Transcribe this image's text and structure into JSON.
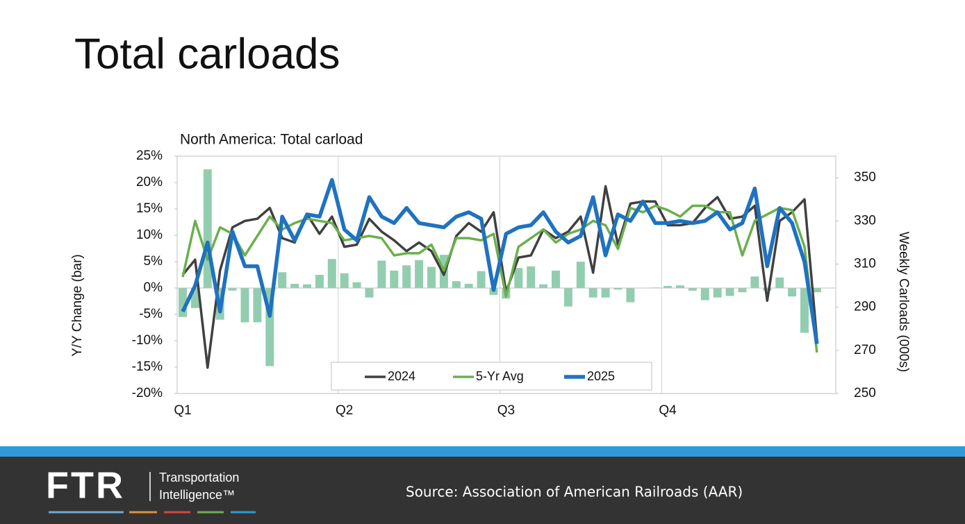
{
  "title": "Total carloads",
  "chart_data": {
    "type": "combo",
    "title": "North America: Total carload",
    "y_label": "Y/Y Change (bar)",
    "y2_label": "Weekly Carloads (000s)",
    "categories": [
      "Q1",
      null,
      null,
      null,
      null,
      null,
      null,
      null,
      null,
      null,
      null,
      null,
      null,
      "Q2",
      null,
      null,
      null,
      null,
      null,
      null,
      null,
      null,
      null,
      null,
      null,
      null,
      "Q3",
      null,
      null,
      null,
      null,
      null,
      null,
      null,
      null,
      null,
      null,
      null,
      null,
      "Q4",
      null,
      null,
      null,
      null,
      null,
      null,
      null,
      null,
      null,
      null,
      null,
      null
    ],
    "ylim": [
      -20,
      25
    ],
    "yticks": [
      {
        "value": -20,
        "label": "-20%"
      },
      {
        "value": -15,
        "label": "-15%"
      },
      {
        "value": -10,
        "label": "-10%"
      },
      {
        "value": -5,
        "label": "-5%"
      },
      {
        "value": 0,
        "label": "0%"
      },
      {
        "value": 5,
        "label": "5%"
      },
      {
        "value": 10,
        "label": "10%"
      },
      {
        "value": 15,
        "label": "15%"
      },
      {
        "value": 20,
        "label": "20%"
      },
      {
        "value": 25,
        "label": "25%"
      }
    ],
    "y2lim": [
      250,
      360
    ],
    "y2ticks": [
      250,
      270,
      290,
      310,
      330,
      350
    ],
    "legend": "bottom",
    "series": [
      {
        "type": "bar",
        "axis": "y",
        "color": "#93cdb0",
        "values": [
          -5.5,
          -3.8,
          22.5,
          -6,
          -0.5,
          -6.5,
          -6.5,
          -14.8,
          3,
          0.8,
          0.7,
          2.5,
          5.5,
          2.8,
          1.1,
          -1.8,
          5.2,
          3.3,
          4.3,
          5.3,
          4,
          6.3,
          1.3,
          0.8,
          3.2,
          -1.3,
          -2,
          3.8,
          4.1,
          0.7,
          3.3,
          -3.5,
          5,
          -1.8,
          -1.8,
          -0.3,
          -2.7,
          0,
          0.1,
          0.4,
          0.5,
          -0.5,
          -2.3,
          -1.8,
          -1.5,
          -0.8,
          2.2,
          -0.5,
          2,
          -1.6,
          -8.5,
          -0.8
        ]
      },
      {
        "type": "line",
        "axis": "y2",
        "name": "2024",
        "color": "#404040",
        "values": [
          305,
          312,
          262,
          307,
          327,
          330,
          331,
          336,
          322,
          320,
          333,
          324,
          332,
          318,
          319,
          331,
          325,
          321,
          316,
          320,
          316,
          305,
          323,
          329,
          325,
          334,
          297,
          313,
          314,
          326,
          322,
          325,
          332,
          306,
          346,
          319,
          338,
          339,
          339,
          328,
          328,
          329,
          336,
          341,
          331,
          332,
          337,
          293,
          330,
          334,
          340,
          275
        ]
      },
      {
        "type": "line",
        "axis": "y2",
        "name": "5-Yr Avg",
        "color": "#6ab04c",
        "values": [
          304,
          330,
          312,
          327,
          324,
          314,
          323,
          332,
          326,
          329,
          331,
          330,
          329,
          321,
          322,
          323,
          322,
          314,
          315,
          315,
          319,
          307,
          322,
          322,
          321,
          324,
          295,
          318,
          322,
          326,
          320,
          324,
          326,
          330,
          328,
          317,
          336,
          334,
          337,
          335,
          332,
          337,
          337,
          334,
          334,
          314,
          330,
          333,
          336,
          335,
          318,
          269
        ]
      },
      {
        "type": "line",
        "axis": "y2",
        "name": "2025",
        "color": "#1f72c0",
        "values": [
          288,
          300,
          320,
          288,
          325,
          309,
          309,
          286,
          332,
          321,
          333,
          332,
          349,
          326,
          321,
          341,
          332,
          329,
          336,
          329,
          328,
          327,
          332,
          334,
          331,
          298,
          324,
          327,
          328,
          334,
          325,
          320,
          323,
          341,
          314,
          333,
          330,
          339,
          329,
          329,
          330,
          329,
          330,
          334,
          326,
          329,
          345,
          309,
          336,
          329,
          311,
          273
        ]
      }
    ]
  },
  "footer": {
    "logo": "FTR",
    "tagline": [
      "Transportation",
      "Intelligence™"
    ],
    "source": "Source: Association of American Railroads (AAR)"
  }
}
